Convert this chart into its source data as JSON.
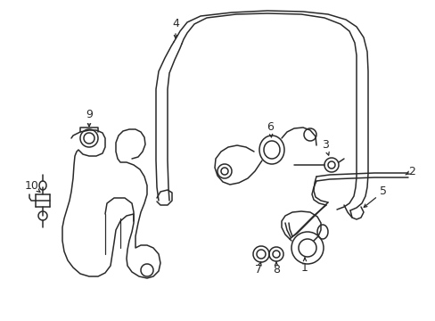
{
  "bg_color": "#ffffff",
  "line_color": "#2a2a2a",
  "lw": 1.1,
  "figsize": [
    4.89,
    3.6
  ],
  "dpi": 100
}
